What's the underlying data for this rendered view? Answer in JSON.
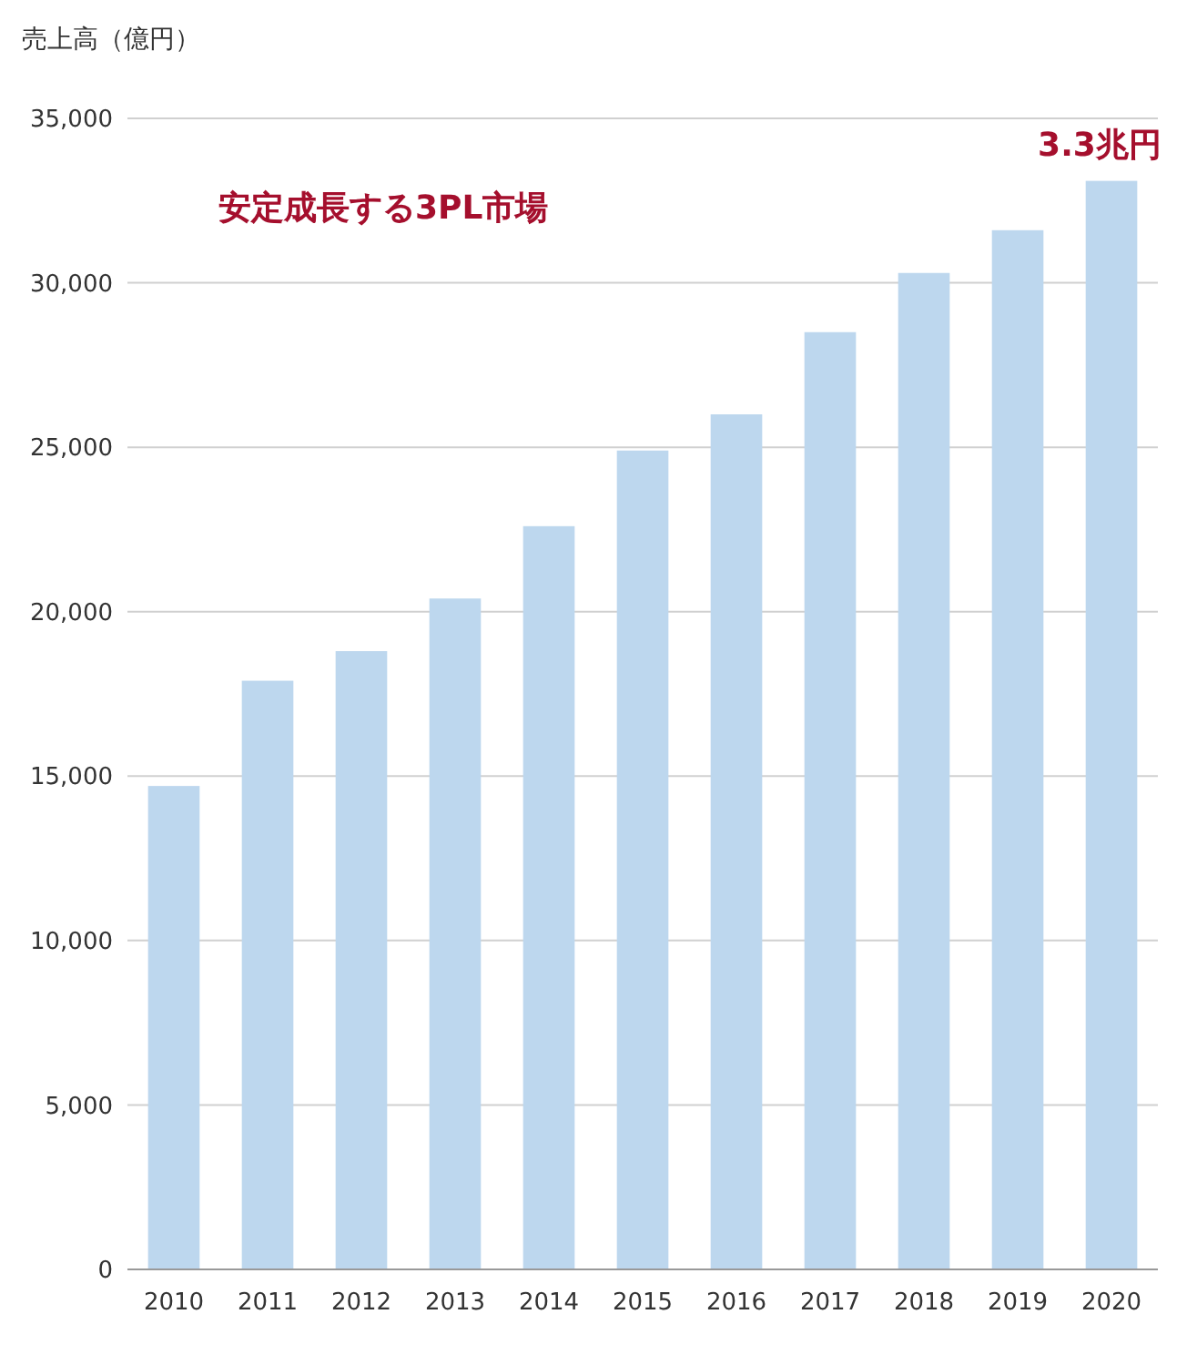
{
  "chart_data": {
    "type": "bar",
    "ylabel": "売上高（億円）",
    "categories": [
      "2010",
      "2011",
      "2012",
      "2013",
      "2014",
      "2015",
      "2016",
      "2017",
      "2018",
      "2019",
      "2020"
    ],
    "values": [
      14700,
      17900,
      18800,
      20400,
      22600,
      24900,
      26000,
      28500,
      30300,
      31600,
      33100
    ],
    "color": "#bdd7ee",
    "ylim": [
      0,
      35000
    ],
    "yticks": [
      {
        "value": 0,
        "label": "0"
      },
      {
        "value": 5000,
        "label": "5,000"
      },
      {
        "value": 10000,
        "label": "10,000"
      },
      {
        "value": 15000,
        "label": "15,000"
      },
      {
        "value": 20000,
        "label": "20,000"
      },
      {
        "value": 25000,
        "label": "25,000"
      },
      {
        "value": 30000,
        "label": "30,000"
      },
      {
        "value": 35000,
        "label": "35,000"
      }
    ],
    "grid": "y",
    "annotations": [
      "安定成長する3PL市場",
      {
        "text": "3.3兆円",
        "x": "2020",
        "y": 33100
      }
    ]
  }
}
